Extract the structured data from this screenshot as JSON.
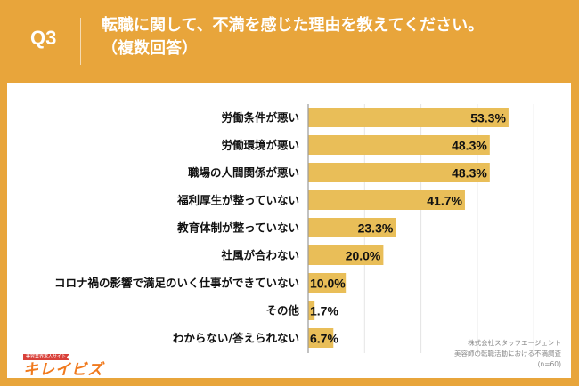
{
  "header": {
    "question_number": "Q3",
    "title_line1": "転職に関して、不満を感じた理由を教えてください。",
    "title_line2": "（複数回答）"
  },
  "logo": {
    "tagline": "美容業界求人サイト",
    "name": "キレイビズ"
  },
  "source": {
    "line1": "株式会社スタッフエージェント",
    "line2": "美容師の転職活動における不満調査",
    "line3": "(n=60)"
  },
  "colors": {
    "background": "#E8A53B",
    "bar": "#E9BE58",
    "card": "#FFFFFF",
    "gridline": "#E4E4E4",
    "axis": "#9A9A9A",
    "text": "#111111"
  },
  "chart_data": {
    "type": "bar",
    "orientation": "horizontal",
    "title": "転職に関して、不満を感じた理由を教えてください。（複数回答）",
    "xlabel": "",
    "ylabel": "",
    "unit": "%",
    "xlim": [
      0,
      65
    ],
    "grid_step": 15,
    "grid": true,
    "legend": "none",
    "categories": [
      "労働条件が悪い",
      "労働環境が悪い",
      "職場の人間関係が悪い",
      "福利厚生が整っていない",
      "教育体制が整っていない",
      "社風が合わない",
      "コロナ禍の影響で満足のいく仕事ができていない",
      "その他",
      "わからない/答えられない"
    ],
    "values": [
      53.3,
      48.3,
      48.3,
      41.7,
      23.3,
      20.0,
      10.0,
      1.7,
      6.7
    ],
    "data_labels": [
      "53.3%",
      "48.3%",
      "48.3%",
      "41.7%",
      "23.3%",
      "20.0%",
      "10.0%",
      "1.7%",
      "6.7%"
    ]
  }
}
